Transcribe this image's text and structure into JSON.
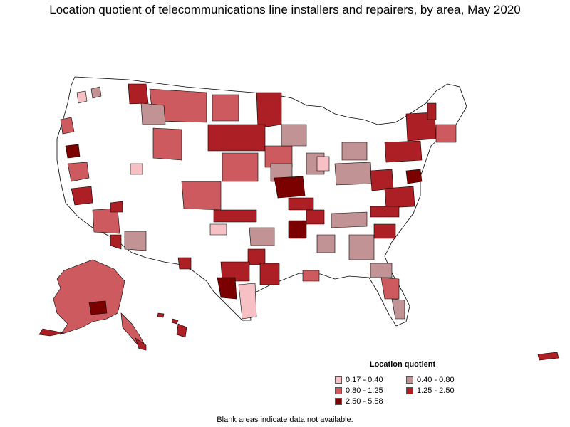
{
  "title": "Location quotient of telecommunications line installers and repairers, by area, May 2020",
  "legend": {
    "title": "Location quotient",
    "items": [
      {
        "label": "0.17 - 0.40",
        "color": "#f6c0c5"
      },
      {
        "label": "0.40 - 0.80",
        "color": "#c19394"
      },
      {
        "label": "0.80 - 1.25",
        "color": "#cd5a5e"
      },
      {
        "label": "1.25 - 2.50",
        "color": "#ac1f24"
      },
      {
        "label": "2.50 - 5.58",
        "color": "#7b0000"
      }
    ]
  },
  "footnote": "Blank areas indicate data not available.",
  "colors": {
    "outline": "#000000",
    "blank": "#ffffff"
  }
}
